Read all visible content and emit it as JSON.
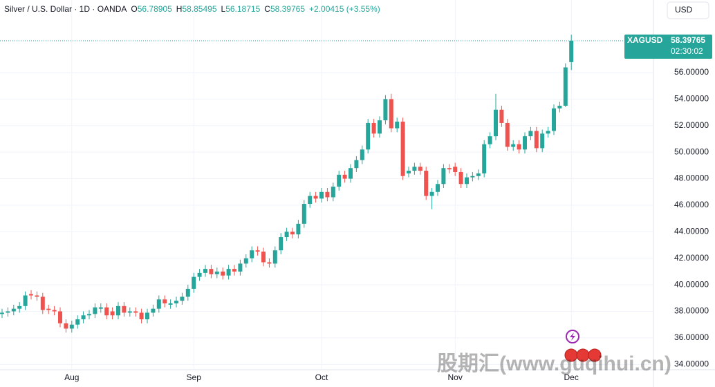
{
  "chart_data": {
    "type": "candlestick",
    "title": "Silver / U.S. Dollar · 1D · OANDA",
    "header": [
      {
        "key": "O",
        "text": "56.78905"
      },
      {
        "key": "H",
        "text": "58.85495"
      },
      {
        "key": "L",
        "text": "56.18715"
      },
      {
        "key": "C",
        "text": "58.39765"
      }
    ],
    "change": "+2.00415 (+3.55%)",
    "currency": "USD",
    "symbol": "XAGUSD",
    "countdown": "02:30:02",
    "watermark": "股期汇(www.guqihui.cn)",
    "up_color": "#26a69a",
    "down_color": "#ef5350",
    "grid": true,
    "categories": [
      null,
      null,
      null,
      null,
      null,
      null,
      null,
      null,
      null,
      null,
      null,
      null,
      "Aug",
      null,
      null,
      null,
      null,
      null,
      null,
      null,
      null,
      null,
      null,
      null,
      null,
      null,
      null,
      null,
      null,
      null,
      null,
      null,
      null,
      "Sep",
      null,
      null,
      null,
      null,
      null,
      null,
      null,
      null,
      null,
      null,
      null,
      null,
      null,
      null,
      null,
      null,
      null,
      null,
      null,
      null,
      null,
      "Oct",
      null,
      null,
      null,
      null,
      null,
      null,
      null,
      null,
      null,
      null,
      null,
      null,
      null,
      null,
      null,
      null,
      null,
      null,
      null,
      null,
      null,
      null,
      "Nov",
      null,
      null,
      null,
      null,
      null,
      null,
      null,
      null,
      null,
      null,
      null,
      null,
      null,
      null,
      null,
      null,
      null,
      null,
      null,
      "Dec"
    ],
    "open": [
      37.8,
      37.9,
      38.0,
      38.2,
      38.4,
      39.3,
      39.2,
      39.1,
      38.2,
      38.1,
      38.0,
      37.1,
      36.7,
      37.0,
      37.4,
      37.7,
      37.8,
      38.2,
      38.3,
      38.0,
      37.7,
      38.4,
      37.9,
      38.0,
      37.9,
      37.4,
      37.9,
      38.2,
      38.9,
      38.5,
      38.6,
      38.8,
      39.1,
      39.7,
      40.6,
      40.9,
      41.2,
      40.8,
      41.0,
      40.7,
      41.2,
      41.0,
      41.6,
      42.0,
      42.6,
      42.5,
      41.7,
      41.6,
      42.6,
      43.6,
      44.0,
      43.8,
      44.6,
      46.1,
      46.7,
      46.5,
      47.0,
      46.6,
      47.4,
      48.3,
      48.0,
      48.8,
      49.4,
      50.2,
      52.2,
      51.4,
      52.4,
      54.0,
      51.8,
      52.3,
      48.4,
      48.6,
      48.9,
      48.6,
      46.7,
      47.0,
      47.6,
      48.8,
      48.9,
      48.5,
      47.6,
      48.1,
      48.2,
      48.4,
      50.6,
      51.2,
      53.2,
      52.2,
      50.4,
      50.6,
      50.2,
      51.2,
      51.6,
      50.3,
      51.4,
      51.6,
      53.3,
      53.5,
      56.78905
    ],
    "high": [
      38.2,
      38.3,
      38.5,
      38.7,
      39.5,
      39.6,
      39.5,
      39.4,
      38.5,
      38.4,
      38.3,
      37.4,
      37.3,
      37.7,
      38.0,
      38.1,
      38.6,
      38.6,
      38.6,
      38.3,
      38.7,
      38.7,
      38.3,
      38.3,
      38.2,
      38.2,
      38.5,
      39.2,
      39.2,
      38.9,
      39.1,
      39.4,
      40.0,
      40.9,
      41.2,
      41.5,
      41.5,
      41.3,
      41.3,
      41.5,
      41.5,
      41.9,
      42.3,
      42.9,
      42.9,
      42.8,
      42.0,
      42.9,
      43.9,
      44.3,
      44.3,
      44.9,
      46.4,
      47.0,
      47.0,
      47.3,
      47.3,
      47.7,
      48.6,
      48.6,
      49.1,
      49.7,
      50.5,
      52.5,
      52.5,
      52.7,
      54.3,
      54.4,
      52.6,
      52.6,
      48.9,
      49.2,
      49.2,
      48.9,
      47.3,
      47.9,
      49.1,
      49.1,
      49.2,
      48.8,
      48.4,
      48.5,
      48.7,
      50.9,
      51.5,
      54.4,
      53.5,
      52.5,
      50.9,
      50.9,
      51.5,
      51.9,
      51.9,
      51.7,
      51.9,
      53.6,
      53.8,
      56.7,
      58.85495
    ],
    "low": [
      37.5,
      37.6,
      37.7,
      37.9,
      38.1,
      38.9,
      38.8,
      37.8,
      37.8,
      37.7,
      36.8,
      36.4,
      36.4,
      36.7,
      37.1,
      37.4,
      37.5,
      37.9,
      37.4,
      37.4,
      37.4,
      37.6,
      37.6,
      37.6,
      37.1,
      37.1,
      37.6,
      37.9,
      38.3,
      38.2,
      38.3,
      38.5,
      38.8,
      39.4,
      40.3,
      40.6,
      40.5,
      40.5,
      40.4,
      40.4,
      40.7,
      40.7,
      41.3,
      41.7,
      42.2,
      41.4,
      41.3,
      41.3,
      42.3,
      43.3,
      43.5,
      43.5,
      44.3,
      45.8,
      46.2,
      46.2,
      46.3,
      46.3,
      47.1,
      47.7,
      47.7,
      48.5,
      49.1,
      49.9,
      51.1,
      51.1,
      52.1,
      51.5,
      51.5,
      47.9,
      48.1,
      48.3,
      48.3,
      46.4,
      45.7,
      46.7,
      47.3,
      48.4,
      48.2,
      47.3,
      47.3,
      47.8,
      47.9,
      48.1,
      50.3,
      50.9,
      51.9,
      50.1,
      50.1,
      49.9,
      49.9,
      50.9,
      50.0,
      50.0,
      51.1,
      51.3,
      53.0,
      53.4,
      56.18715
    ],
    "close": [
      37.9,
      38.0,
      38.2,
      38.4,
      39.2,
      39.2,
      39.1,
      38.1,
      38.1,
      38.0,
      37.1,
      36.7,
      37.0,
      37.4,
      37.7,
      37.8,
      38.3,
      38.3,
      37.7,
      37.7,
      38.4,
      37.9,
      38.0,
      37.9,
      37.4,
      37.9,
      38.2,
      38.9,
      38.6,
      38.6,
      38.8,
      39.1,
      39.7,
      40.6,
      40.9,
      41.2,
      40.8,
      41.0,
      40.7,
      41.2,
      41.0,
      41.6,
      42.0,
      42.6,
      42.5,
      41.7,
      41.6,
      42.6,
      43.6,
      44.0,
      43.8,
      44.6,
      46.1,
      46.7,
      46.5,
      47.0,
      46.6,
      47.4,
      48.3,
      48.0,
      48.8,
      49.4,
      50.2,
      52.2,
      51.4,
      52.4,
      54.0,
      51.8,
      52.3,
      48.2,
      48.6,
      48.9,
      48.6,
      46.7,
      47.0,
      47.6,
      48.8,
      48.7,
      48.5,
      47.6,
      48.1,
      48.2,
      48.4,
      50.6,
      51.2,
      53.2,
      52.2,
      50.4,
      50.6,
      50.2,
      51.2,
      51.6,
      50.3,
      51.4,
      51.6,
      53.3,
      53.5,
      56.39,
      58.39765
    ],
    "ylim": [
      33.6,
      61.47
    ],
    "yticks": [
      {
        "value": 34,
        "label": "34.00000"
      },
      {
        "value": 36,
        "label": "36.00000"
      },
      {
        "value": 38,
        "label": "38.00000"
      },
      {
        "value": 40,
        "label": "40.00000"
      },
      {
        "value": 42,
        "label": "42.00000"
      },
      {
        "value": 44,
        "label": "44.00000"
      },
      {
        "value": 46,
        "label": "46.00000"
      },
      {
        "value": 48,
        "label": "48.00000"
      },
      {
        "value": 50,
        "label": "50.00000"
      },
      {
        "value": 52,
        "label": "52.00000"
      },
      {
        "value": 54,
        "label": "54.00000"
      },
      {
        "value": 56,
        "label": "56.00000"
      }
    ]
  }
}
